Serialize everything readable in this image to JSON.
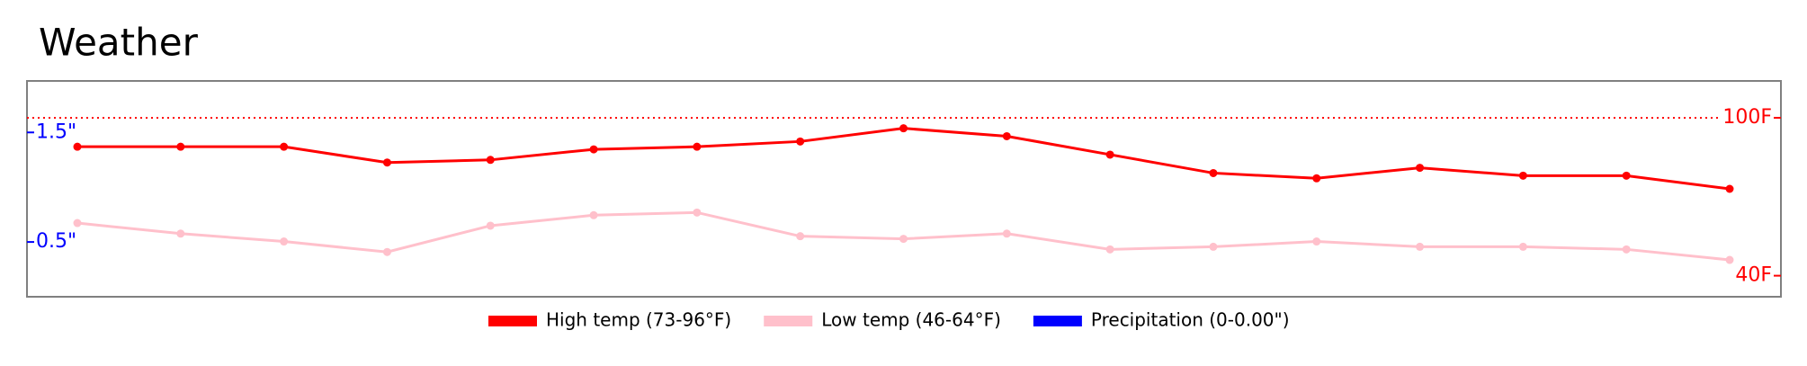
{
  "chart_data": {
    "type": "line",
    "title": "Weather",
    "series": [
      {
        "name": "High temp (73-96°F)",
        "color": "#ff0000",
        "axis": "y2",
        "values": [
          89,
          89,
          89,
          83,
          84,
          88,
          89,
          91,
          96,
          93,
          86,
          79,
          77,
          81,
          78,
          78,
          73
        ]
      },
      {
        "name": "Low temp (46-64°F)",
        "color": "#ffc0cb",
        "axis": "y2",
        "values": [
          60,
          56,
          53,
          49,
          59,
          63,
          64,
          55,
          54,
          56,
          50,
          51,
          53,
          51,
          51,
          50,
          46
        ]
      },
      {
        "name": "Precipitation (0-0.00\")",
        "color": "#0000ff",
        "values": [
          0,
          0,
          0,
          0,
          0,
          0,
          0,
          0,
          0,
          0,
          0,
          0,
          0,
          0,
          0,
          0,
          0
        ]
      }
    ],
    "ylim": [
      0,
      1.97
    ],
    "yticks": [
      {
        "value": 0.5,
        "label": "0.5\""
      },
      {
        "value": 1.5,
        "label": "1.5\""
      }
    ],
    "y2lim": [
      32,
      114
    ],
    "y2ticks": [
      {
        "value": 40,
        "label": "40F"
      },
      {
        "value": 100,
        "label": "100F"
      }
    ],
    "y2_ref_line": 100
  }
}
